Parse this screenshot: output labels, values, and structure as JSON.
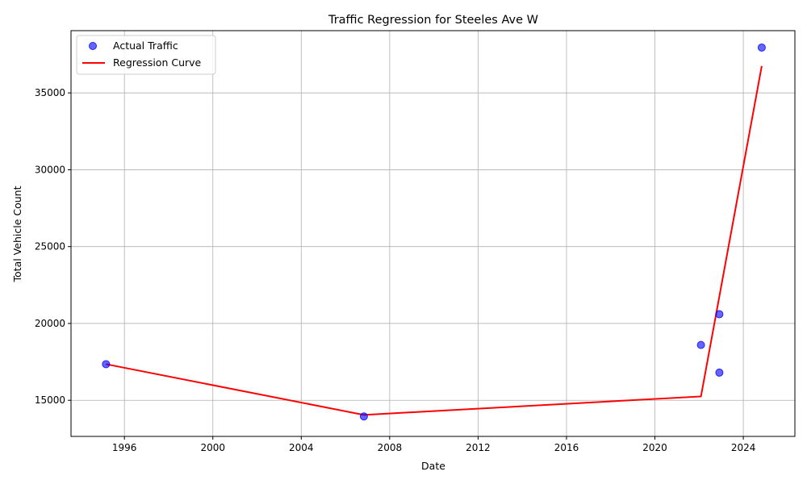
{
  "chart_data": {
    "type": "scatter",
    "title": "Traffic Regression for Steeles Ave W",
    "xlabel": "Date",
    "ylabel": "Total Vehicle Count",
    "x_ticks": [
      "1996",
      "2000",
      "2004",
      "2008",
      "2012",
      "2016",
      "2020",
      "2024"
    ],
    "y_ticks": [
      15000,
      20000,
      25000,
      30000,
      35000
    ],
    "xlim": [
      "1993-08-01",
      "2026-05-01"
    ],
    "ylim": [
      12650,
      39050
    ],
    "grid": true,
    "legend_position": "upper-left",
    "series": [
      {
        "name": "Actual Traffic",
        "kind": "scatter",
        "color": "#0000ff",
        "points": [
          {
            "x": "1995-03-01",
            "y": 17350
          },
          {
            "x": "2006-11-01",
            "y": 13950
          },
          {
            "x": "2022-02-01",
            "y": 18600
          },
          {
            "x": "2022-12-01",
            "y": 20600
          },
          {
            "x": "2022-12-01",
            "y": 16800
          },
          {
            "x": "2024-11-01",
            "y": 37950
          }
        ]
      },
      {
        "name": "Regression Curve",
        "kind": "line",
        "color": "#ff0000",
        "points": [
          {
            "x": "1995-03-01",
            "y": 17350
          },
          {
            "x": "2006-11-01",
            "y": 14050
          },
          {
            "x": "2022-02-01",
            "y": 15250
          },
          {
            "x": "2024-11-01",
            "y": 36750
          }
        ]
      }
    ]
  }
}
